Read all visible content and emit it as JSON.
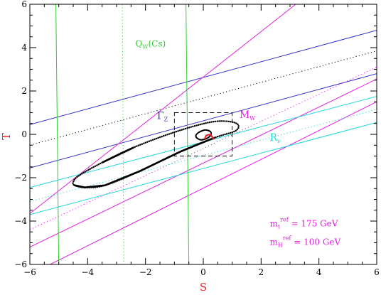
{
  "chart_data": {
    "type": "line",
    "xlabel": "S",
    "ylabel": "T",
    "xlim": [
      -6,
      6
    ],
    "ylim": [
      -6,
      6
    ],
    "xticks": [
      -6,
      -4,
      -2,
      0,
      2,
      4,
      6
    ],
    "yticks": [
      -6,
      -4,
      -2,
      0,
      2,
      4,
      6
    ],
    "grid": false,
    "colors": {
      "axes": "#000000",
      "axis_title": "#e8262d",
      "blue": "#3333cc",
      "magenta": "#e020e0",
      "cyan": "#22d8d8",
      "green": "#33cc33",
      "black": "#000000",
      "red": "#e8262d"
    },
    "bands": [
      {
        "color": "#3333cc",
        "style": "solid",
        "lines": [
          [
            [
              -6,
              0.45
            ],
            [
              6,
              4.8
            ]
          ],
          [
            [
              -6,
              -1.55
            ],
            [
              6,
              2.8
            ]
          ]
        ]
      },
      {
        "color": "#000000",
        "style": "dotted",
        "lines": [
          [
            [
              -6,
              -0.5
            ],
            [
              6,
              3.85
            ]
          ]
        ]
      },
      {
        "color": "#e020e0",
        "style": "solid",
        "lines": [
          [
            [
              -6,
              -3.65
            ],
            [
              3.2,
              6
            ]
          ],
          [
            [
              -6,
              -5.2
            ],
            [
              6,
              2.55
            ]
          ],
          [
            [
              -5.3,
              -6
            ],
            [
              6,
              1.5
            ]
          ]
        ]
      },
      {
        "color": "#e020e0",
        "style": "dotted",
        "lines": [
          [
            [
              -6,
              -4.4
            ],
            [
              6,
              3.1
            ]
          ]
        ]
      },
      {
        "color": "#22d8d8",
        "style": "solid",
        "lines": [
          [
            [
              -6,
              -2.45
            ],
            [
              6,
              1.75
            ]
          ],
          [
            [
              -6,
              -3.7
            ],
            [
              6,
              0.55
            ]
          ]
        ]
      },
      {
        "color": "#22d8d8",
        "style": "dotted",
        "lines": [
          [
            [
              -6,
              -3.1
            ],
            [
              6,
              1.15
            ]
          ]
        ]
      },
      {
        "color": "#33cc33",
        "style": "solid",
        "lines": [
          [
            [
              -5.1,
              6
            ],
            [
              -5.0,
              -6
            ]
          ],
          [
            [
              -0.6,
              6
            ],
            [
              -0.5,
              -6
            ]
          ]
        ]
      },
      {
        "color": "#33cc33",
        "style": "dotted",
        "lines": [
          [
            [
              -2.8,
              6
            ],
            [
              -2.75,
              -6
            ]
          ]
        ]
      }
    ],
    "ellipses": [
      {
        "name": "outer",
        "center": [
          -1.55,
          -1.15
        ],
        "points": [
          [
            -4.45,
            -2.35
          ],
          [
            -4.1,
            -2.45
          ],
          [
            -3.4,
            -2.35
          ],
          [
            -2.2,
            -1.7
          ],
          [
            -0.8,
            -0.8
          ],
          [
            0.4,
            -0.15
          ],
          [
            1.1,
            0.15
          ],
          [
            1.2,
            0.45
          ],
          [
            0.85,
            0.6
          ],
          [
            0.2,
            0.55
          ],
          [
            -1.0,
            0.1
          ],
          [
            -2.4,
            -0.6
          ],
          [
            -3.5,
            -1.3
          ],
          [
            -4.3,
            -1.9
          ],
          [
            -4.5,
            -2.2
          ]
        ]
      },
      {
        "name": "inner",
        "color": "#000000",
        "points": [
          [
            -0.1,
            -0.25
          ],
          [
            -0.25,
            -0.12
          ],
          [
            -0.2,
            0.05
          ],
          [
            0.05,
            0.2
          ],
          [
            0.25,
            0.12
          ],
          [
            0.25,
            -0.05
          ],
          [
            0.1,
            -0.2
          ]
        ]
      }
    ],
    "red_point": {
      "points": [
        [
          0.05,
          -0.2
        ],
        [
          0.1,
          -0.05
        ],
        [
          0.25,
          0.0
        ],
        [
          0.35,
          -0.2
        ]
      ]
    },
    "dashed_box": {
      "x": [
        -1,
        1
      ],
      "y": [
        -1,
        1
      ]
    },
    "annotations": {
      "qw": {
        "main": "Q",
        "sub": "W",
        "tail": "(Cs)",
        "color": "#33cc33",
        "at": [
          -2.35,
          4.05
        ]
      },
      "gz": {
        "main": "Γ",
        "sub": "Z",
        "color": "#3333cc",
        "at": [
          -1.6,
          0.7
        ]
      },
      "mw": {
        "main": "M",
        "sub": "W",
        "color": "#e020e0",
        "at": [
          1.25,
          0.75
        ]
      },
      "rv": {
        "main": "R",
        "sub": "ν",
        "color": "#22d8d8",
        "at": [
          2.3,
          -0.3
        ]
      },
      "mt": {
        "main": "m",
        "sub": "t",
        "sup": "ref",
        "tail": " = 175 GeV",
        "color": "#e020e0",
        "at": [
          2.3,
          -4.25
        ]
      },
      "mh": {
        "main": "m",
        "sub": "H",
        "sup": "ref",
        "tail": " = 100 GeV",
        "color": "#e020e0",
        "at": [
          2.3,
          -5.1
        ]
      }
    }
  }
}
